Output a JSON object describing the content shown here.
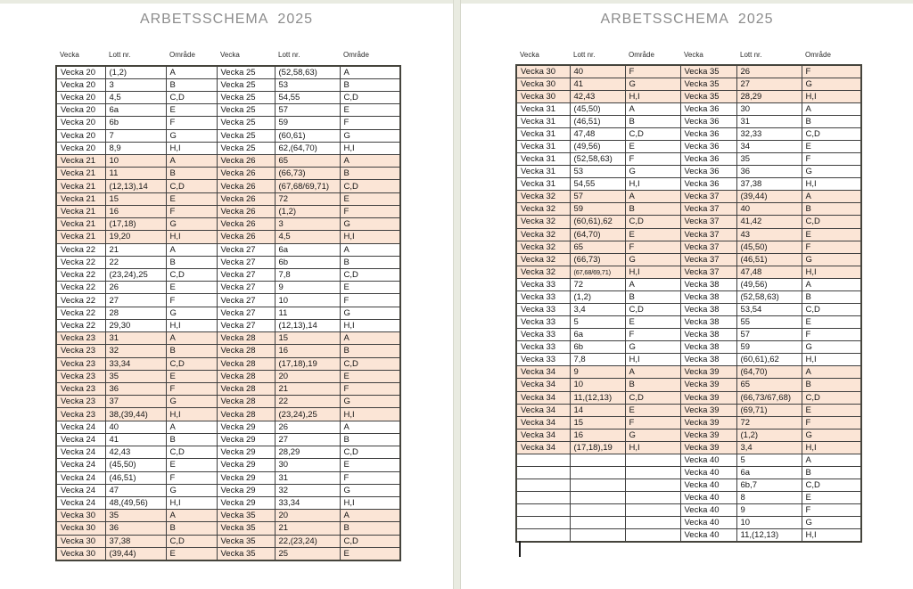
{
  "document": {
    "app_background": "#e9ebe1",
    "page_background": "#ffffff",
    "highlight_color": "#fbe5d6",
    "border_color": "#3f3f3f",
    "title_color": "#8c8c8c"
  },
  "pages": [
    {
      "title": "ARBETSSCHEMA  2025",
      "column_headers": [
        "Vecka",
        "Lott nr.",
        "Område",
        "Vecka",
        "Lott nr.",
        "Område"
      ],
      "rows": [
        {
          "cells": [
            "Vecka 20",
            "(1,2)",
            "A",
            "Vecka 25",
            "(52,58,63)",
            "A"
          ],
          "hl": false
        },
        {
          "cells": [
            "Vecka 20",
            "3",
            "B",
            "Vecka 25",
            "53",
            "B"
          ],
          "hl": false
        },
        {
          "cells": [
            "Vecka 20",
            "4,5",
            "C,D",
            "Vecka 25",
            "54,55",
            "C,D"
          ],
          "hl": false
        },
        {
          "cells": [
            "Vecka 20",
            "6a",
            "E",
            "Vecka 25",
            "57",
            "E"
          ],
          "hl": false
        },
        {
          "cells": [
            "Vecka 20",
            "6b",
            "F",
            "Vecka 25",
            "59",
            "F"
          ],
          "hl": false
        },
        {
          "cells": [
            "Vecka 20",
            "7",
            "G",
            "Vecka 25",
            "(60,61)",
            "G"
          ],
          "hl": false
        },
        {
          "cells": [
            "Vecka 20",
            "8,9",
            "H,I",
            "Vecka 25",
            "62,(64,70)",
            "H,I"
          ],
          "hl": false
        },
        {
          "cells": [
            "Vecka 21",
            "10",
            "A",
            "Vecka 26",
            "65",
            "A"
          ],
          "hl": true
        },
        {
          "cells": [
            "Vecka 21",
            "11",
            "B",
            "Vecka 26",
            "(66,73)",
            "B"
          ],
          "hl": true
        },
        {
          "cells": [
            "Vecka 21",
            "(12,13),14",
            "C,D",
            "Vecka 26",
            "(67,68/69,71)",
            "C,D"
          ],
          "hl": true
        },
        {
          "cells": [
            "Vecka 21",
            "15",
            "E",
            "Vecka 26",
            "72",
            "E"
          ],
          "hl": true
        },
        {
          "cells": [
            "Vecka 21",
            "16",
            "F",
            "Vecka 26",
            "(1,2)",
            "F"
          ],
          "hl": true
        },
        {
          "cells": [
            "Vecka 21",
            "(17,18)",
            "G",
            "Vecka 26",
            "3",
            "G"
          ],
          "hl": true
        },
        {
          "cells": [
            "Vecka 21",
            "19,20",
            "H,I",
            "Vecka 26",
            "4,5",
            "H,I"
          ],
          "hl": true
        },
        {
          "cells": [
            "Vecka 22",
            "21",
            "A",
            "Vecka 27",
            "6a",
            "A"
          ],
          "hl": false
        },
        {
          "cells": [
            "Vecka 22",
            "22",
            "B",
            "Vecka 27",
            "6b",
            "B"
          ],
          "hl": false
        },
        {
          "cells": [
            "Vecka 22",
            "(23,24),25",
            "C,D",
            "Vecka 27",
            "7,8",
            "C,D"
          ],
          "hl": false
        },
        {
          "cells": [
            "Vecka 22",
            "26",
            "E",
            "Vecka 27",
            "9",
            "E"
          ],
          "hl": false
        },
        {
          "cells": [
            "Vecka 22",
            "27",
            "F",
            "Vecka 27",
            "10",
            "F"
          ],
          "hl": false
        },
        {
          "cells": [
            "Vecka 22",
            "28",
            "G",
            "Vecka 27",
            "11",
            "G"
          ],
          "hl": false
        },
        {
          "cells": [
            "Vecka 22",
            "29,30",
            "H,I",
            "Vecka 27",
            "(12,13),14",
            "H,I"
          ],
          "hl": false
        },
        {
          "cells": [
            "Vecka 23",
            "31",
            "A",
            "Vecka 28",
            "15",
            "A"
          ],
          "hl": true
        },
        {
          "cells": [
            "Vecka 23",
            "32",
            "B",
            "Vecka 28",
            "16",
            "B"
          ],
          "hl": true
        },
        {
          "cells": [
            "Vecka 23",
            "33,34",
            "C,D",
            "Vecka 28",
            "(17,18),19",
            "C,D"
          ],
          "hl": true
        },
        {
          "cells": [
            "Vecka 23",
            "35",
            "E",
            "Vecka 28",
            "20",
            "E"
          ],
          "hl": true
        },
        {
          "cells": [
            "Vecka 23",
            "36",
            "F",
            "Vecka 28",
            "21",
            "F"
          ],
          "hl": true
        },
        {
          "cells": [
            "Vecka 23",
            "37",
            "G",
            "Vecka 28",
            "22",
            "G"
          ],
          "hl": true
        },
        {
          "cells": [
            "Vecka 23",
            "38,(39,44)",
            "H,I",
            "Vecka 28",
            "(23,24),25",
            "H,I"
          ],
          "hl": true
        },
        {
          "cells": [
            "Vecka 24",
            "40",
            "A",
            "Vecka 29",
            "26",
            "A"
          ],
          "hl": false
        },
        {
          "cells": [
            "Vecka 24",
            "41",
            "B",
            "Vecka 29",
            "27",
            "B"
          ],
          "hl": false
        },
        {
          "cells": [
            "Vecka 24",
            "42,43",
            "C,D",
            "Vecka 29",
            "28,29",
            "C,D"
          ],
          "hl": false
        },
        {
          "cells": [
            "Vecka 24",
            "(45,50)",
            "E",
            "Vecka 29",
            "30",
            "E"
          ],
          "hl": false
        },
        {
          "cells": [
            "Vecka 24",
            "(46,51)",
            "F",
            "Vecka 29",
            "31",
            "F"
          ],
          "hl": false
        },
        {
          "cells": [
            "Vecka 24",
            "47",
            "G",
            "Vecka 29",
            "32",
            "G"
          ],
          "hl": false
        },
        {
          "cells": [
            "Vecka 24",
            "48,(49,56)",
            "H,I",
            "Vecka 29",
            "33,34",
            "H,I"
          ],
          "hl": false
        },
        {
          "cells": [
            "Vecka 30",
            "35",
            "A",
            "Vecka 35",
            "20",
            "A"
          ],
          "hl": true
        },
        {
          "cells": [
            "Vecka 30",
            "36",
            "B",
            "Vecka 35",
            "21",
            "B"
          ],
          "hl": true
        },
        {
          "cells": [
            "Vecka 30",
            "37,38",
            "C,D",
            "Vecka 35",
            "22,(23,24)",
            "C,D"
          ],
          "hl": true
        },
        {
          "cells": [
            "Vecka 30",
            "(39,44)",
            "E",
            "Vecka 35",
            "25",
            "E"
          ],
          "hl": true
        }
      ]
    },
    {
      "title": "ARBETSSCHEMA  2025",
      "column_headers": [
        "Vecka",
        "Lott nr.",
        "Område",
        "Vecka",
        "Lott nr.",
        "Område"
      ],
      "rows": [
        {
          "cells": [
            "Vecka 30",
            "40",
            "F",
            "Vecka 35",
            "26",
            "F"
          ],
          "hl": true
        },
        {
          "cells": [
            "Vecka 30",
            "41",
            "G",
            "Vecka 35",
            "27",
            "G"
          ],
          "hl": true
        },
        {
          "cells": [
            "Vecka 30",
            "42,43",
            "H,I",
            "Vecka 35",
            "28,29",
            "H,I"
          ],
          "hl": true
        },
        {
          "cells": [
            "Vecka 31",
            "(45,50)",
            "A",
            "Vecka 36",
            "30",
            "A"
          ],
          "hl": false
        },
        {
          "cells": [
            "Vecka 31",
            "(46,51)",
            "B",
            "Vecka 36",
            "31",
            "B"
          ],
          "hl": false
        },
        {
          "cells": [
            "Vecka 31",
            "47,48",
            "C,D",
            "Vecka 36",
            "32,33",
            "C,D"
          ],
          "hl": false
        },
        {
          "cells": [
            "Vecka 31",
            "(49,56)",
            "E",
            "Vecka 36",
            "34",
            "E"
          ],
          "hl": false
        },
        {
          "cells": [
            "Vecka 31",
            "(52,58,63)",
            "F",
            "Vecka 36",
            "35",
            "F"
          ],
          "hl": false
        },
        {
          "cells": [
            "Vecka 31",
            "53",
            "G",
            "Vecka 36",
            "36",
            "G"
          ],
          "hl": false
        },
        {
          "cells": [
            "Vecka 31",
            "54,55",
            "H,I",
            "Vecka 36",
            "37,38",
            "H,I"
          ],
          "hl": false
        },
        {
          "cells": [
            "Vecka 32",
            "57",
            "A",
            "Vecka 37",
            "(39,44)",
            "A"
          ],
          "hl": true
        },
        {
          "cells": [
            "Vecka 32",
            "59",
            "B",
            "Vecka 37",
            "40",
            "B"
          ],
          "hl": true
        },
        {
          "cells": [
            "Vecka 32",
            "(60,61),62",
            "C,D",
            "Vecka 37",
            "41,42",
            "C,D"
          ],
          "hl": true
        },
        {
          "cells": [
            "Vecka 32",
            "(64,70)",
            "E",
            "Vecka 37",
            "43",
            "E"
          ],
          "hl": true
        },
        {
          "cells": [
            "Vecka 32",
            "65",
            "F",
            "Vecka 37",
            "(45,50)",
            "F"
          ],
          "hl": true
        },
        {
          "cells": [
            "Vecka 32",
            "(66,73)",
            "G",
            "Vecka 37",
            "(46,51)",
            "G"
          ],
          "hl": true
        },
        {
          "cells": [
            "Vecka 32",
            "(67,68/69,71)",
            "H,I",
            "Vecka 37",
            "47,48",
            "H,I"
          ],
          "hl": true,
          "small": [
            1
          ]
        },
        {
          "cells": [
            "Vecka 33",
            "72",
            "A",
            "Vecka 38",
            "(49,56)",
            "A"
          ],
          "hl": false
        },
        {
          "cells": [
            "Vecka 33",
            "(1,2)",
            "B",
            "Vecka 38",
            "(52,58,63)",
            "B"
          ],
          "hl": false
        },
        {
          "cells": [
            "Vecka 33",
            "3,4",
            "C,D",
            "Vecka 38",
            "53,54",
            "C,D"
          ],
          "hl": false
        },
        {
          "cells": [
            "Vecka 33",
            "5",
            "E",
            "Vecka 38",
            "55",
            "E"
          ],
          "hl": false
        },
        {
          "cells": [
            "Vecka 33",
            "6a",
            "F",
            "Vecka 38",
            "57",
            "F"
          ],
          "hl": false
        },
        {
          "cells": [
            "Vecka 33",
            "6b",
            "G",
            "Vecka 38",
            "59",
            "G"
          ],
          "hl": false
        },
        {
          "cells": [
            "Vecka 33",
            "7,8",
            "H,I",
            "Vecka 38",
            "(60,61),62",
            "H,I"
          ],
          "hl": false
        },
        {
          "cells": [
            "Vecka 34",
            "9",
            "A",
            "Vecka 39",
            "(64,70)",
            "A"
          ],
          "hl": true
        },
        {
          "cells": [
            "Vecka 34",
            "10",
            "B",
            "Vecka 39",
            "65",
            "B"
          ],
          "hl": true
        },
        {
          "cells": [
            "Vecka 34",
            "11,(12,13)",
            "C,D",
            "Vecka 39",
            "(66,73/67,68)",
            "C,D"
          ],
          "hl": true
        },
        {
          "cells": [
            "Vecka 34",
            "14",
            "E",
            "Vecka 39",
            "(69,71)",
            "E"
          ],
          "hl": true
        },
        {
          "cells": [
            "Vecka 34",
            "15",
            "F",
            "Vecka 39",
            "72",
            "F"
          ],
          "hl": true
        },
        {
          "cells": [
            "Vecka 34",
            "16",
            "G",
            "Vecka 39",
            "(1,2)",
            "G"
          ],
          "hl": true
        },
        {
          "cells": [
            "Vecka 34",
            "(17,18),19",
            "H,I",
            "Vecka 39",
            "3,4",
            "H,I"
          ],
          "hl": true
        },
        {
          "cells": [
            "",
            "",
            "",
            "Vecka 40",
            "5",
            "A"
          ],
          "hl": false
        },
        {
          "cells": [
            "",
            "",
            "",
            "Vecka 40",
            "6a",
            "B"
          ],
          "hl": false
        },
        {
          "cells": [
            "",
            "",
            "",
            "Vecka 40",
            "6b,7",
            "C,D"
          ],
          "hl": false
        },
        {
          "cells": [
            "",
            "",
            "",
            "Vecka 40",
            "8",
            "E"
          ],
          "hl": false
        },
        {
          "cells": [
            "",
            "",
            "",
            "Vecka 40",
            "9",
            "F"
          ],
          "hl": false
        },
        {
          "cells": [
            "",
            "",
            "",
            "Vecka 40",
            "10",
            "G"
          ],
          "hl": false
        },
        {
          "cells": [
            "",
            "",
            "",
            "Vecka 40",
            "11,(12,13)",
            "H,I"
          ],
          "hl": false
        }
      ]
    }
  ]
}
